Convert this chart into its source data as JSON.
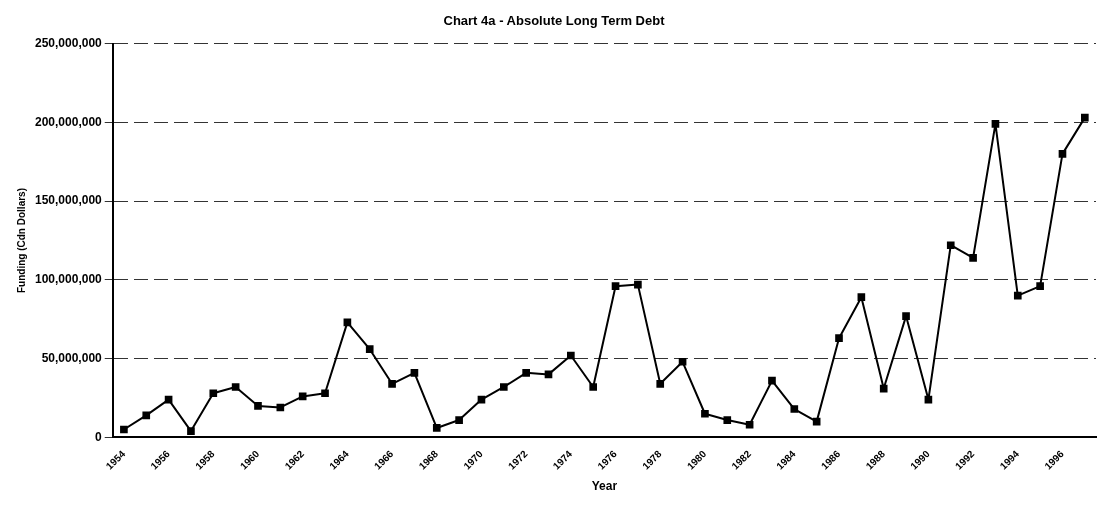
{
  "chart_data": {
    "type": "line",
    "title": "Chart 4a - Absolute Long Term Debt",
    "xlabel": "Year",
    "ylabel": "Funding (Cdn Dollars)",
    "categories": [
      "1954",
      null,
      "1956",
      null,
      "1958",
      null,
      "1960",
      null,
      "1962",
      null,
      "1964",
      null,
      "1966",
      null,
      "1968",
      null,
      "1970",
      null,
      "1972",
      null,
      "1974",
      null,
      "1976",
      null,
      "1978",
      null,
      "1980",
      null,
      "1982",
      null,
      "1984",
      null,
      "1986",
      null,
      "1988",
      null,
      "1990",
      null,
      "1992",
      null,
      "1994",
      null,
      "1996",
      null
    ],
    "series": [
      {
        "color": "#000000",
        "values": [
          5000000,
          14000000,
          24000000,
          4000000,
          28000000,
          32000000,
          20000000,
          19000000,
          26000000,
          28000000,
          73000000,
          56000000,
          34000000,
          41000000,
          6000000,
          11000000,
          24000000,
          32000000,
          41000000,
          40000000,
          52000000,
          32000000,
          96000000,
          97000000,
          34000000,
          48000000,
          15000000,
          11000000,
          8000000,
          36000000,
          18000000,
          10000000,
          63000000,
          89000000,
          31000000,
          77000000,
          24000000,
          122000000,
          114000000,
          199000000,
          90000000,
          96000000,
          180000000,
          203000000
        ]
      }
    ],
    "ylim": [
      0,
      250000000
    ],
    "yticks": [
      {
        "value": 0,
        "label": "0"
      },
      {
        "value": 50000000,
        "label": "50,000,000"
      },
      {
        "value": 100000000,
        "label": "100,000,000"
      },
      {
        "value": 150000000,
        "label": "150,000,000"
      },
      {
        "value": 200000000,
        "label": "200,000,000"
      },
      {
        "value": 250000000,
        "label": "250,000,000"
      }
    ],
    "grid": "y",
    "marker": "square",
    "line_style": "solid",
    "legend": false
  }
}
